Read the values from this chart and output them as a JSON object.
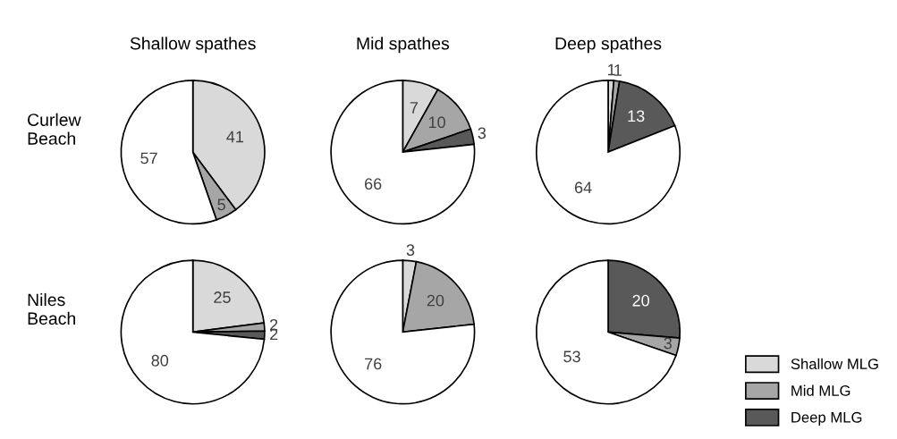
{
  "chart_data": [
    {
      "type": "pie",
      "title": "Shallow spathes",
      "ylabel": "Curlew\nBeach",
      "categories": [
        null,
        null,
        null
      ],
      "values": [
        41,
        5,
        57
      ],
      "colors": [
        "#d9d9d9",
        "#a6a6a6",
        "#ffffff"
      ],
      "data_labels": true
    },
    {
      "type": "pie",
      "title": "Mid spathes",
      "categories": [
        null,
        null,
        null,
        null
      ],
      "values": [
        7,
        10,
        3,
        66
      ],
      "colors": [
        "#d9d9d9",
        "#a6a6a6",
        "#595959",
        "#ffffff"
      ],
      "data_labels": true
    },
    {
      "type": "pie",
      "title": "Deep spathes",
      "categories": [
        null,
        null,
        null,
        null
      ],
      "values": [
        1,
        1,
        13,
        64
      ],
      "colors": [
        "#d9d9d9",
        "#a6a6a6",
        "#595959",
        "#ffffff"
      ],
      "data_labels": true
    },
    {
      "type": "pie",
      "ylabel": "Niles\nBeach",
      "categories": [
        "Shallow MLG",
        "Mid MLG",
        "Deep MLG",
        null
      ],
      "values": [
        25,
        2,
        2,
        80
      ],
      "colors": [
        "#d9d9d9",
        "#a6a6a6",
        "#595959",
        "#ffffff"
      ],
      "data_labels": true,
      "legend": "right"
    },
    {
      "type": "pie",
      "categories": [
        null,
        null,
        null
      ],
      "values": [
        3,
        20,
        76
      ],
      "colors": [
        "#d9d9d9",
        "#a6a6a6",
        "#ffffff"
      ],
      "data_labels": true
    },
    {
      "type": "pie",
      "categories": [
        null,
        null,
        null
      ],
      "values": [
        20,
        3,
        53
      ],
      "colors": [
        "#595959",
        "#a6a6a6",
        "#ffffff"
      ],
      "data_labels": true
    }
  ]
}
